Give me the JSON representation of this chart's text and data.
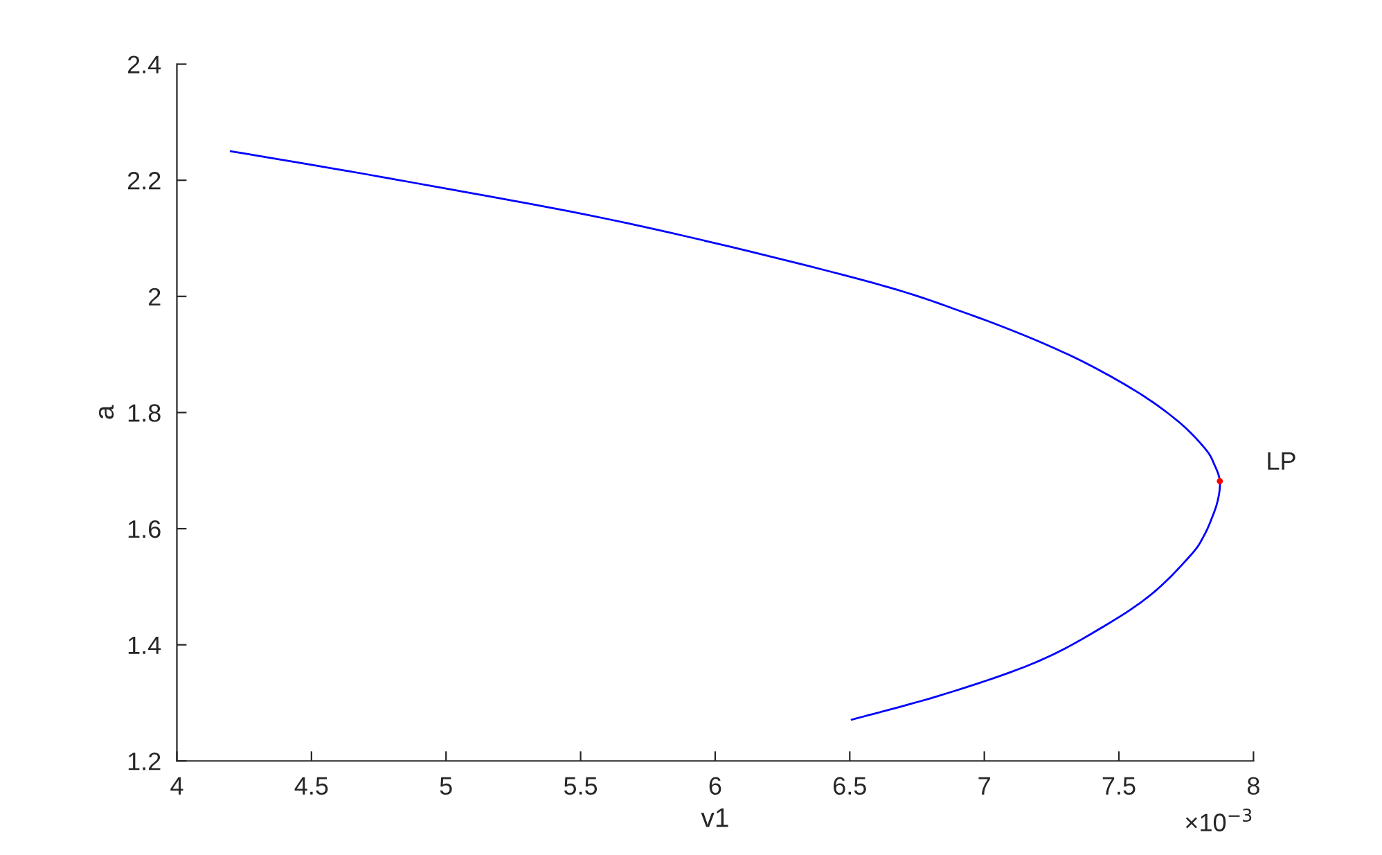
{
  "chart_data": {
    "type": "line",
    "xlabel": "v1",
    "ylabel": "a",
    "series": [
      {
        "color": "#0000ff",
        "x": [
          4.2,
          4.817,
          5.674,
          6.533,
          6.945,
          7.288,
          7.545,
          7.717,
          7.82,
          7.855,
          7.875,
          7.868,
          7.846,
          7.815,
          7.768,
          7.631,
          7.459,
          7.202,
          6.858,
          6.507
        ],
        "values": [
          2.25,
          2.201,
          2.126,
          2.03,
          1.969,
          1.905,
          1.842,
          1.786,
          1.738,
          1.71,
          1.682,
          1.65,
          1.619,
          1.587,
          1.555,
          1.491,
          1.436,
          1.372,
          1.316,
          1.271
        ]
      },
      {
        "type": "scatter",
        "marker": "circle",
        "color": "#ff0000",
        "x": [
          7.875
        ],
        "values": [
          1.682
        ]
      }
    ],
    "annotations": [
      {
        "text": "LP",
        "x": 7.875,
        "y": 1.682
      },
      "×10$^{−3}$"
    ],
    "xlim": [
      4,
      8
    ],
    "xticks": [
      4,
      4.5,
      5,
      5.5,
      6,
      6.5,
      7,
      7.5,
      8
    ],
    "ylim": [
      1.2,
      2.4
    ],
    "yticks": [
      1.2,
      1.4,
      1.6,
      1.8,
      2,
      2.2,
      2.4
    ],
    "grid": false,
    "line_style": "solid"
  }
}
